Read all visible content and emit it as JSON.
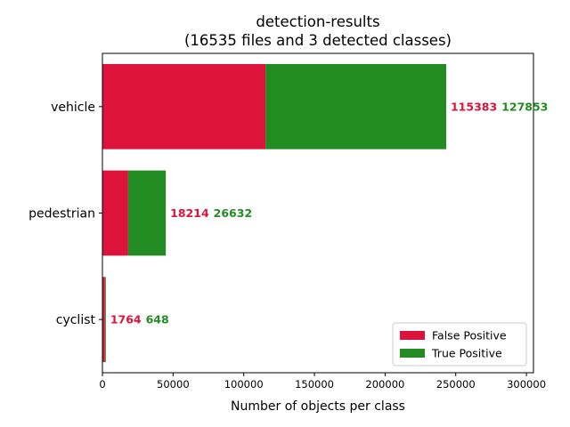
{
  "chart_data": {
    "type": "bar",
    "orientation": "horizontal",
    "stacked": true,
    "title": "detection-results",
    "subtitle": "(16535 files and 3 detected classes)",
    "xlabel": "Number of objects per class",
    "ylabel": "",
    "xlim": [
      0,
      305000
    ],
    "xticks": [
      0,
      50000,
      100000,
      150000,
      200000,
      250000,
      300000
    ],
    "xtick_labels": [
      "0",
      "50000",
      "100000",
      "150000",
      "200000",
      "250000",
      "300000"
    ],
    "categories": [
      "vehicle",
      "pedestrian",
      "cyclist"
    ],
    "series": [
      {
        "name": "False Positive",
        "color": "#DC143C",
        "values": [
          115383,
          18214,
          1764
        ]
      },
      {
        "name": "True Positive",
        "color": "#228B22",
        "values": [
          127853,
          26632,
          648
        ]
      }
    ],
    "legend_position": "lower-right",
    "grid": false
  }
}
